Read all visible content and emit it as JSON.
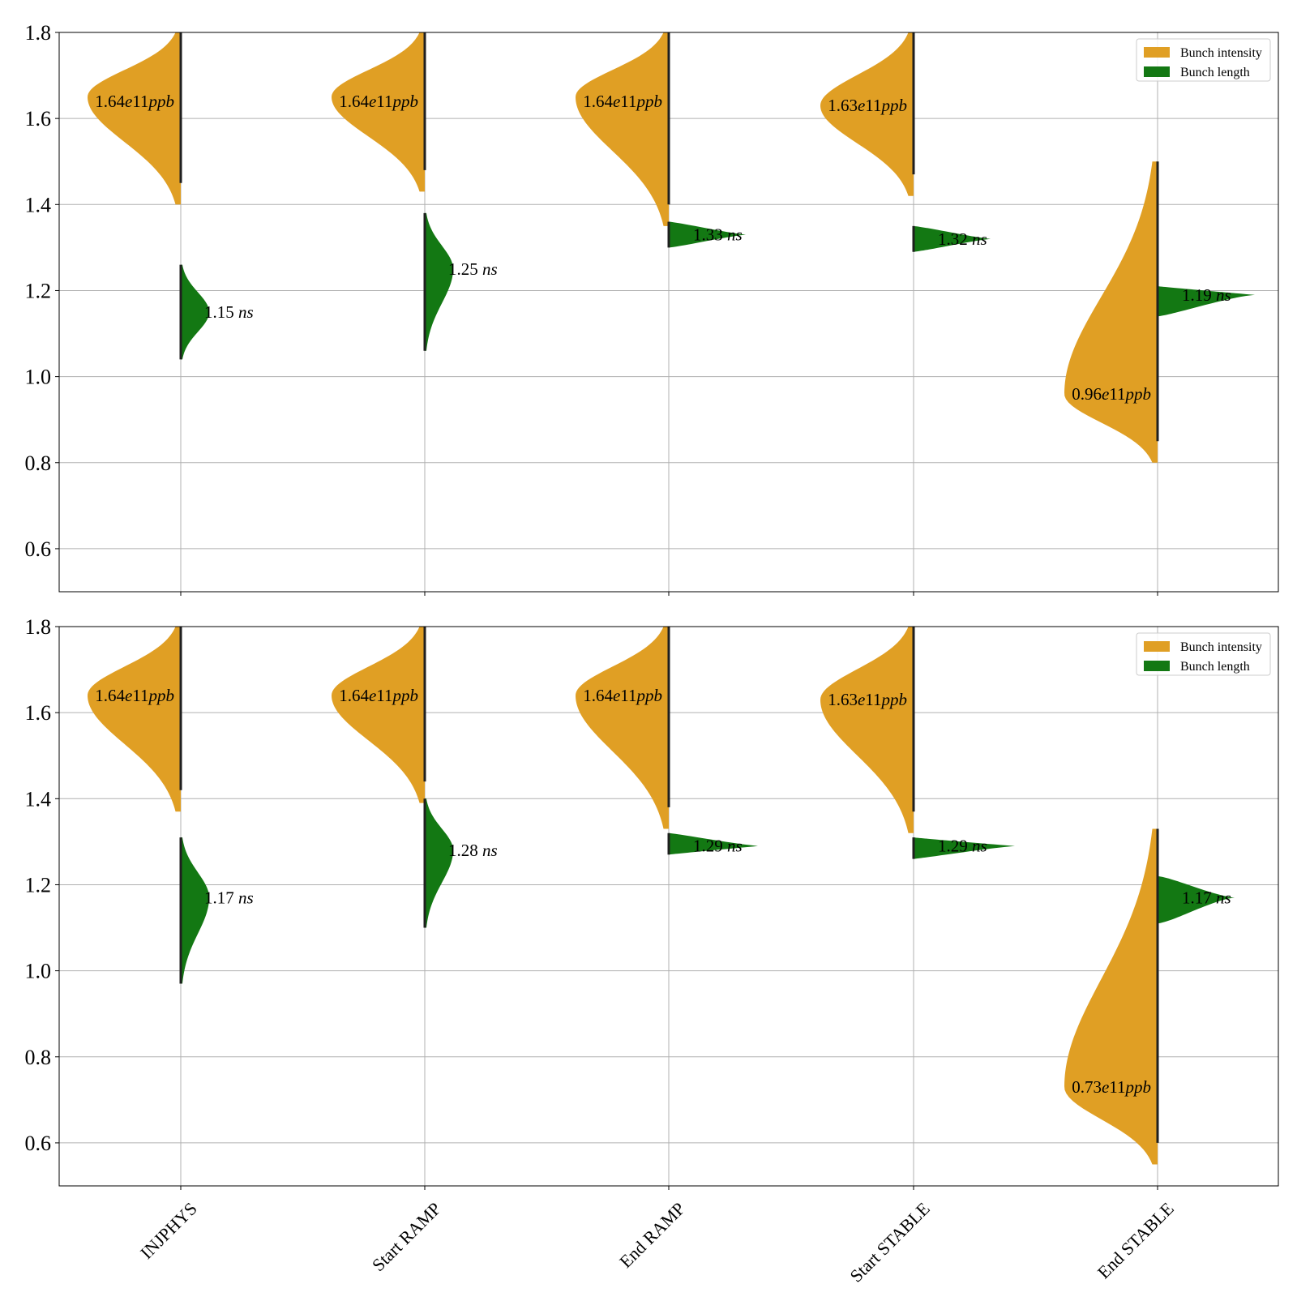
{
  "chart_data": [
    {
      "type": "violin",
      "panel": "top",
      "ylim": [
        0.5,
        1.8
      ],
      "yticks": [
        "0.6",
        "0.8",
        "1.0",
        "1.2",
        "1.4",
        "1.6",
        "1.8"
      ],
      "categories": [
        "INJPHYS",
        "Start RAMP",
        "End RAMP",
        "Start STABLE",
        "End STABLE"
      ],
      "grid": "y",
      "legend_position": "top-right",
      "legend": [
        "Bunch intensity",
        "Bunch length"
      ],
      "colors": {
        "intensity": "#e09f24",
        "length": "#137813"
      },
      "series": [
        {
          "name": "Bunch intensity",
          "side": "left",
          "peaks": [
            1.65,
            1.65,
            1.65,
            1.63,
            0.96
          ],
          "ranges": [
            [
              1.4,
              1.8
            ],
            [
              1.43,
              1.8
            ],
            [
              1.35,
              1.8
            ],
            [
              1.42,
              1.8
            ],
            [
              0.8,
              1.5
            ]
          ],
          "labels": [
            "1.64e11ppb",
            "1.64e11ppb",
            "1.64e11ppb",
            "1.63e11ppb",
            "0.96e11ppb"
          ],
          "label_values": [
            1.64,
            1.64,
            1.64,
            1.63,
            0.96
          ]
        },
        {
          "name": "Bunch length",
          "side": "right",
          "peaks": [
            1.15,
            1.25,
            1.33,
            1.32,
            1.19
          ],
          "ranges": [
            [
              1.04,
              1.26
            ],
            [
              1.06,
              1.38
            ],
            [
              1.3,
              1.36
            ],
            [
              1.29,
              1.35
            ],
            [
              1.14,
              1.21
            ]
          ],
          "labels": [
            "1.15 ns",
            "1.25 ns",
            "1.33 ns",
            "1.32 ns",
            "1.19 ns"
          ],
          "label_values": [
            1.15,
            1.25,
            1.33,
            1.32,
            1.19
          ]
        }
      ]
    },
    {
      "type": "violin",
      "panel": "bottom",
      "ylim": [
        0.5,
        1.8
      ],
      "yticks": [
        "0.6",
        "0.8",
        "1.0",
        "1.2",
        "1.4",
        "1.6",
        "1.8"
      ],
      "categories": [
        "INJPHYS",
        "Start RAMP",
        "End RAMP",
        "Start STABLE",
        "End STABLE"
      ],
      "grid": "y",
      "legend_position": "top-right",
      "legend": [
        "Bunch intensity",
        "Bunch length"
      ],
      "colors": {
        "intensity": "#e09f24",
        "length": "#137813"
      },
      "series": [
        {
          "name": "Bunch intensity",
          "side": "left",
          "peaks": [
            1.64,
            1.64,
            1.64,
            1.63,
            0.73
          ],
          "ranges": [
            [
              1.37,
              1.8
            ],
            [
              1.39,
              1.8
            ],
            [
              1.33,
              1.8
            ],
            [
              1.32,
              1.8
            ],
            [
              0.55,
              1.33
            ]
          ],
          "labels": [
            "1.64e11ppb",
            "1.64e11ppb",
            "1.64e11ppb",
            "1.63e11ppb",
            "0.73e11ppb"
          ],
          "label_values": [
            1.64,
            1.64,
            1.64,
            1.63,
            0.73
          ]
        },
        {
          "name": "Bunch length",
          "side": "right",
          "peaks": [
            1.17,
            1.28,
            1.29,
            1.29,
            1.17
          ],
          "ranges": [
            [
              0.97,
              1.31
            ],
            [
              1.1,
              1.4
            ],
            [
              1.27,
              1.32
            ],
            [
              1.26,
              1.31
            ],
            [
              1.11,
              1.22
            ]
          ],
          "labels": [
            "1.17 ns",
            "1.28 ns",
            "1.29 ns",
            "1.29 ns",
            "1.17 ns"
          ],
          "label_values": [
            1.17,
            1.28,
            1.29,
            1.29,
            1.17
          ]
        }
      ]
    }
  ]
}
